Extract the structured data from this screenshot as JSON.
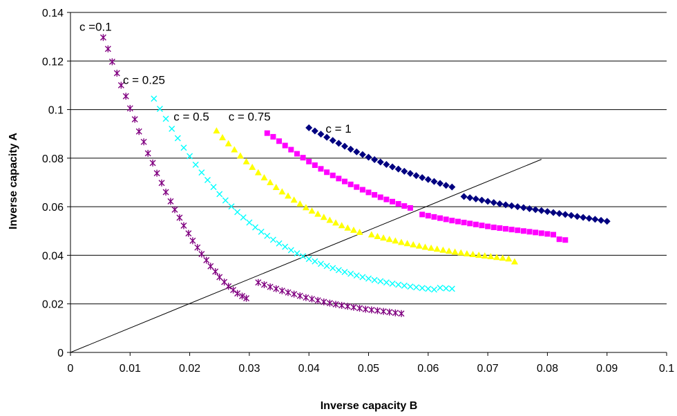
{
  "chart_data": {
    "type": "scatter",
    "xlabel": "Inverse capacity B",
    "ylabel": "Inverse capacity A",
    "xlim": [
      0,
      0.1
    ],
    "ylim": [
      0,
      0.14
    ],
    "x_ticks": [
      "0",
      "0.01",
      "0.02",
      "0.03",
      "0.04",
      "0.05",
      "0.06",
      "0.07",
      "0.08",
      "0.09",
      "0.1"
    ],
    "y_ticks": [
      "0",
      "0.02",
      "0.04",
      "0.06",
      "0.08",
      "0.1",
      "0.12",
      "0.14"
    ],
    "grid": "horizontal",
    "annotations": [
      {
        "text": "c =0.1",
        "x": 0.0015,
        "y": 0.1325
      },
      {
        "text": "c = 0.25",
        "x": 0.0088,
        "y": 0.1105
      },
      {
        "text": "c = 0.5",
        "x": 0.0173,
        "y": 0.0955
      },
      {
        "text": "c = 0.75",
        "x": 0.0265,
        "y": 0.0955
      },
      {
        "text": "c = 1",
        "x": 0.0428,
        "y": 0.0905
      }
    ],
    "reference_line": {
      "x": [
        0,
        0.079
      ],
      "y": [
        0,
        0.0795
      ]
    },
    "series": [
      {
        "marker": "asterisk",
        "color": "#800080",
        "x": [
          0.0055,
          0.0063,
          0.007,
          0.0078,
          0.0085,
          0.0093,
          0.01,
          0.0108,
          0.0115,
          0.0123,
          0.013,
          0.0138,
          0.0145,
          0.0153,
          0.016,
          0.0168,
          0.0175,
          0.0183,
          0.019,
          0.0198,
          0.0205,
          0.0213,
          0.022,
          0.0228,
          0.0235,
          0.0243,
          0.025,
          0.0258,
          0.0265,
          0.0273,
          0.028,
          0.0288,
          0.0295,
          0.0315,
          0.0325,
          0.0335,
          0.0345,
          0.0355,
          0.0365,
          0.0375,
          0.0385,
          0.0395,
          0.0405,
          0.0415,
          0.0425,
          0.0435,
          0.0445,
          0.0455,
          0.0465,
          0.0475,
          0.0485,
          0.0495,
          0.0505,
          0.0515,
          0.0525,
          0.0535,
          0.0545,
          0.0555
        ],
        "y": [
          0.1297,
          0.125,
          0.1197,
          0.115,
          0.11,
          0.1055,
          0.1005,
          0.096,
          0.091,
          0.0867,
          0.082,
          0.078,
          0.0738,
          0.0698,
          0.066,
          0.0622,
          0.0588,
          0.0555,
          0.0522,
          0.049,
          0.046,
          0.0432,
          0.0405,
          0.038,
          0.0355,
          0.0333,
          0.031,
          0.029,
          0.0272,
          0.0257,
          0.0243,
          0.0232,
          0.0223,
          0.0288,
          0.0279,
          0.027,
          0.0262,
          0.0254,
          0.0247,
          0.024,
          0.0233,
          0.0226,
          0.022,
          0.0214,
          0.0208,
          0.0203,
          0.0198,
          0.0194,
          0.019,
          0.0186,
          0.0182,
          0.0178,
          0.0175,
          0.0172,
          0.0169,
          0.0166,
          0.0163,
          0.016
        ]
      },
      {
        "marker": "x",
        "color": "#00ffff",
        "x": [
          0.014,
          0.015,
          0.016,
          0.017,
          0.018,
          0.019,
          0.02,
          0.021,
          0.022,
          0.023,
          0.024,
          0.025,
          0.026,
          0.027,
          0.028,
          0.029,
          0.03,
          0.031,
          0.032,
          0.033,
          0.034,
          0.035,
          0.036,
          0.037,
          0.038,
          0.039,
          0.04,
          0.041,
          0.042,
          0.043,
          0.044,
          0.045,
          0.046,
          0.047,
          0.048,
          0.049,
          0.05,
          0.051,
          0.052,
          0.053,
          0.054,
          0.055,
          0.056,
          0.057,
          0.058,
          0.059,
          0.06,
          0.061,
          0.062,
          0.063,
          0.064
        ],
        "y": [
          0.1045,
          0.1003,
          0.0962,
          0.0921,
          0.0882,
          0.0843,
          0.0808,
          0.0773,
          0.0741,
          0.071,
          0.0681,
          0.0652,
          0.0626,
          0.0601,
          0.0578,
          0.0556,
          0.0535,
          0.0515,
          0.0497,
          0.048,
          0.0464,
          0.0449,
          0.0435,
          0.0421,
          0.0408,
          0.0396,
          0.0385,
          0.0375,
          0.0365,
          0.0356,
          0.0347,
          0.0339,
          0.0331,
          0.0324,
          0.0317,
          0.031,
          0.0304,
          0.0298,
          0.0293,
          0.0288,
          0.0283,
          0.0279,
          0.0275,
          0.0271,
          0.0268,
          0.0265,
          0.0262,
          0.0259,
          0.0266,
          0.0264,
          0.0262
        ]
      },
      {
        "marker": "triangle",
        "color": "#ffff00",
        "x": [
          0.0245,
          0.0255,
          0.0265,
          0.0275,
          0.0285,
          0.0295,
          0.0305,
          0.0315,
          0.0325,
          0.0335,
          0.0345,
          0.0355,
          0.0365,
          0.0375,
          0.0385,
          0.0395,
          0.0405,
          0.0415,
          0.0425,
          0.0435,
          0.0445,
          0.0455,
          0.0465,
          0.0475,
          0.0485,
          0.0505,
          0.0515,
          0.0525,
          0.0535,
          0.0545,
          0.0555,
          0.0565,
          0.0575,
          0.0585,
          0.0595,
          0.0605,
          0.0615,
          0.0625,
          0.0635,
          0.0645,
          0.0655,
          0.0665,
          0.0675,
          0.0685,
          0.0695,
          0.0705,
          0.0715,
          0.0725,
          0.0735,
          0.0745
        ],
        "y": [
          0.0913,
          0.0885,
          0.086,
          0.0835,
          0.081,
          0.0786,
          0.0763,
          0.0741,
          0.072,
          0.07,
          0.068,
          0.0662,
          0.0645,
          0.0628,
          0.0612,
          0.0597,
          0.0583,
          0.057,
          0.0557,
          0.0545,
          0.0534,
          0.0523,
          0.0513,
          0.0504,
          0.0495,
          0.0485,
          0.0478,
          0.0472,
          0.0466,
          0.046,
          0.0454,
          0.0449,
          0.0444,
          0.0439,
          0.0434,
          0.043,
          0.0426,
          0.0422,
          0.0418,
          0.0414,
          0.0411,
          0.0407,
          0.0404,
          0.0401,
          0.0398,
          0.0395,
          0.0392,
          0.0389,
          0.0386,
          0.0374
        ]
      },
      {
        "marker": "square",
        "color": "#ff00ff",
        "x": [
          0.033,
          0.034,
          0.035,
          0.036,
          0.037,
          0.038,
          0.039,
          0.04,
          0.041,
          0.042,
          0.043,
          0.044,
          0.045,
          0.046,
          0.047,
          0.048,
          0.049,
          0.05,
          0.051,
          0.052,
          0.053,
          0.054,
          0.055,
          0.056,
          0.057,
          0.059,
          0.06,
          0.061,
          0.062,
          0.063,
          0.064,
          0.065,
          0.066,
          0.067,
          0.068,
          0.069,
          0.07,
          0.071,
          0.072,
          0.073,
          0.074,
          0.075,
          0.076,
          0.077,
          0.078,
          0.079,
          0.08,
          0.081,
          0.082,
          0.083
        ],
        "y": [
          0.0903,
          0.0888,
          0.087,
          0.0852,
          0.0835,
          0.0818,
          0.0802,
          0.0786,
          0.0771,
          0.0756,
          0.0742,
          0.0729,
          0.0716,
          0.0704,
          0.0692,
          0.0681,
          0.067,
          0.0659,
          0.0649,
          0.0639,
          0.063,
          0.0621,
          0.0612,
          0.0603,
          0.0595,
          0.0568,
          0.0563,
          0.0558,
          0.0553,
          0.0548,
          0.0543,
          0.0539,
          0.0535,
          0.0531,
          0.0527,
          0.0523,
          0.0519,
          0.0515,
          0.0512,
          0.0509,
          0.0506,
          0.0503,
          0.05,
          0.0497,
          0.0494,
          0.0491,
          0.0488,
          0.0485,
          0.0466,
          0.0463
        ]
      },
      {
        "marker": "diamond",
        "color": "#000080",
        "x": [
          0.04,
          0.041,
          0.042,
          0.043,
          0.044,
          0.045,
          0.046,
          0.047,
          0.048,
          0.049,
          0.05,
          0.051,
          0.052,
          0.053,
          0.054,
          0.055,
          0.056,
          0.057,
          0.058,
          0.059,
          0.06,
          0.061,
          0.062,
          0.063,
          0.064,
          0.066,
          0.067,
          0.068,
          0.069,
          0.07,
          0.071,
          0.072,
          0.073,
          0.074,
          0.075,
          0.076,
          0.077,
          0.078,
          0.079,
          0.08,
          0.081,
          0.082,
          0.083,
          0.084,
          0.085,
          0.086,
          0.087,
          0.088,
          0.089,
          0.09
        ],
        "y": [
          0.0925,
          0.0912,
          0.0899,
          0.0886,
          0.0873,
          0.0861,
          0.0849,
          0.0837,
          0.0826,
          0.0815,
          0.0804,
          0.0794,
          0.0784,
          0.0774,
          0.0764,
          0.0755,
          0.0746,
          0.0737,
          0.0728,
          0.072,
          0.0712,
          0.0704,
          0.0696,
          0.0688,
          0.0681,
          0.0642,
          0.0637,
          0.0632,
          0.0627,
          0.0622,
          0.0617,
          0.0612,
          0.0608,
          0.0604,
          0.06,
          0.0596,
          0.0592,
          0.0588,
          0.0584,
          0.058,
          0.0576,
          0.0572,
          0.0568,
          0.0564,
          0.056,
          0.0556,
          0.0552,
          0.0548,
          0.0544,
          0.054
        ]
      }
    ]
  }
}
